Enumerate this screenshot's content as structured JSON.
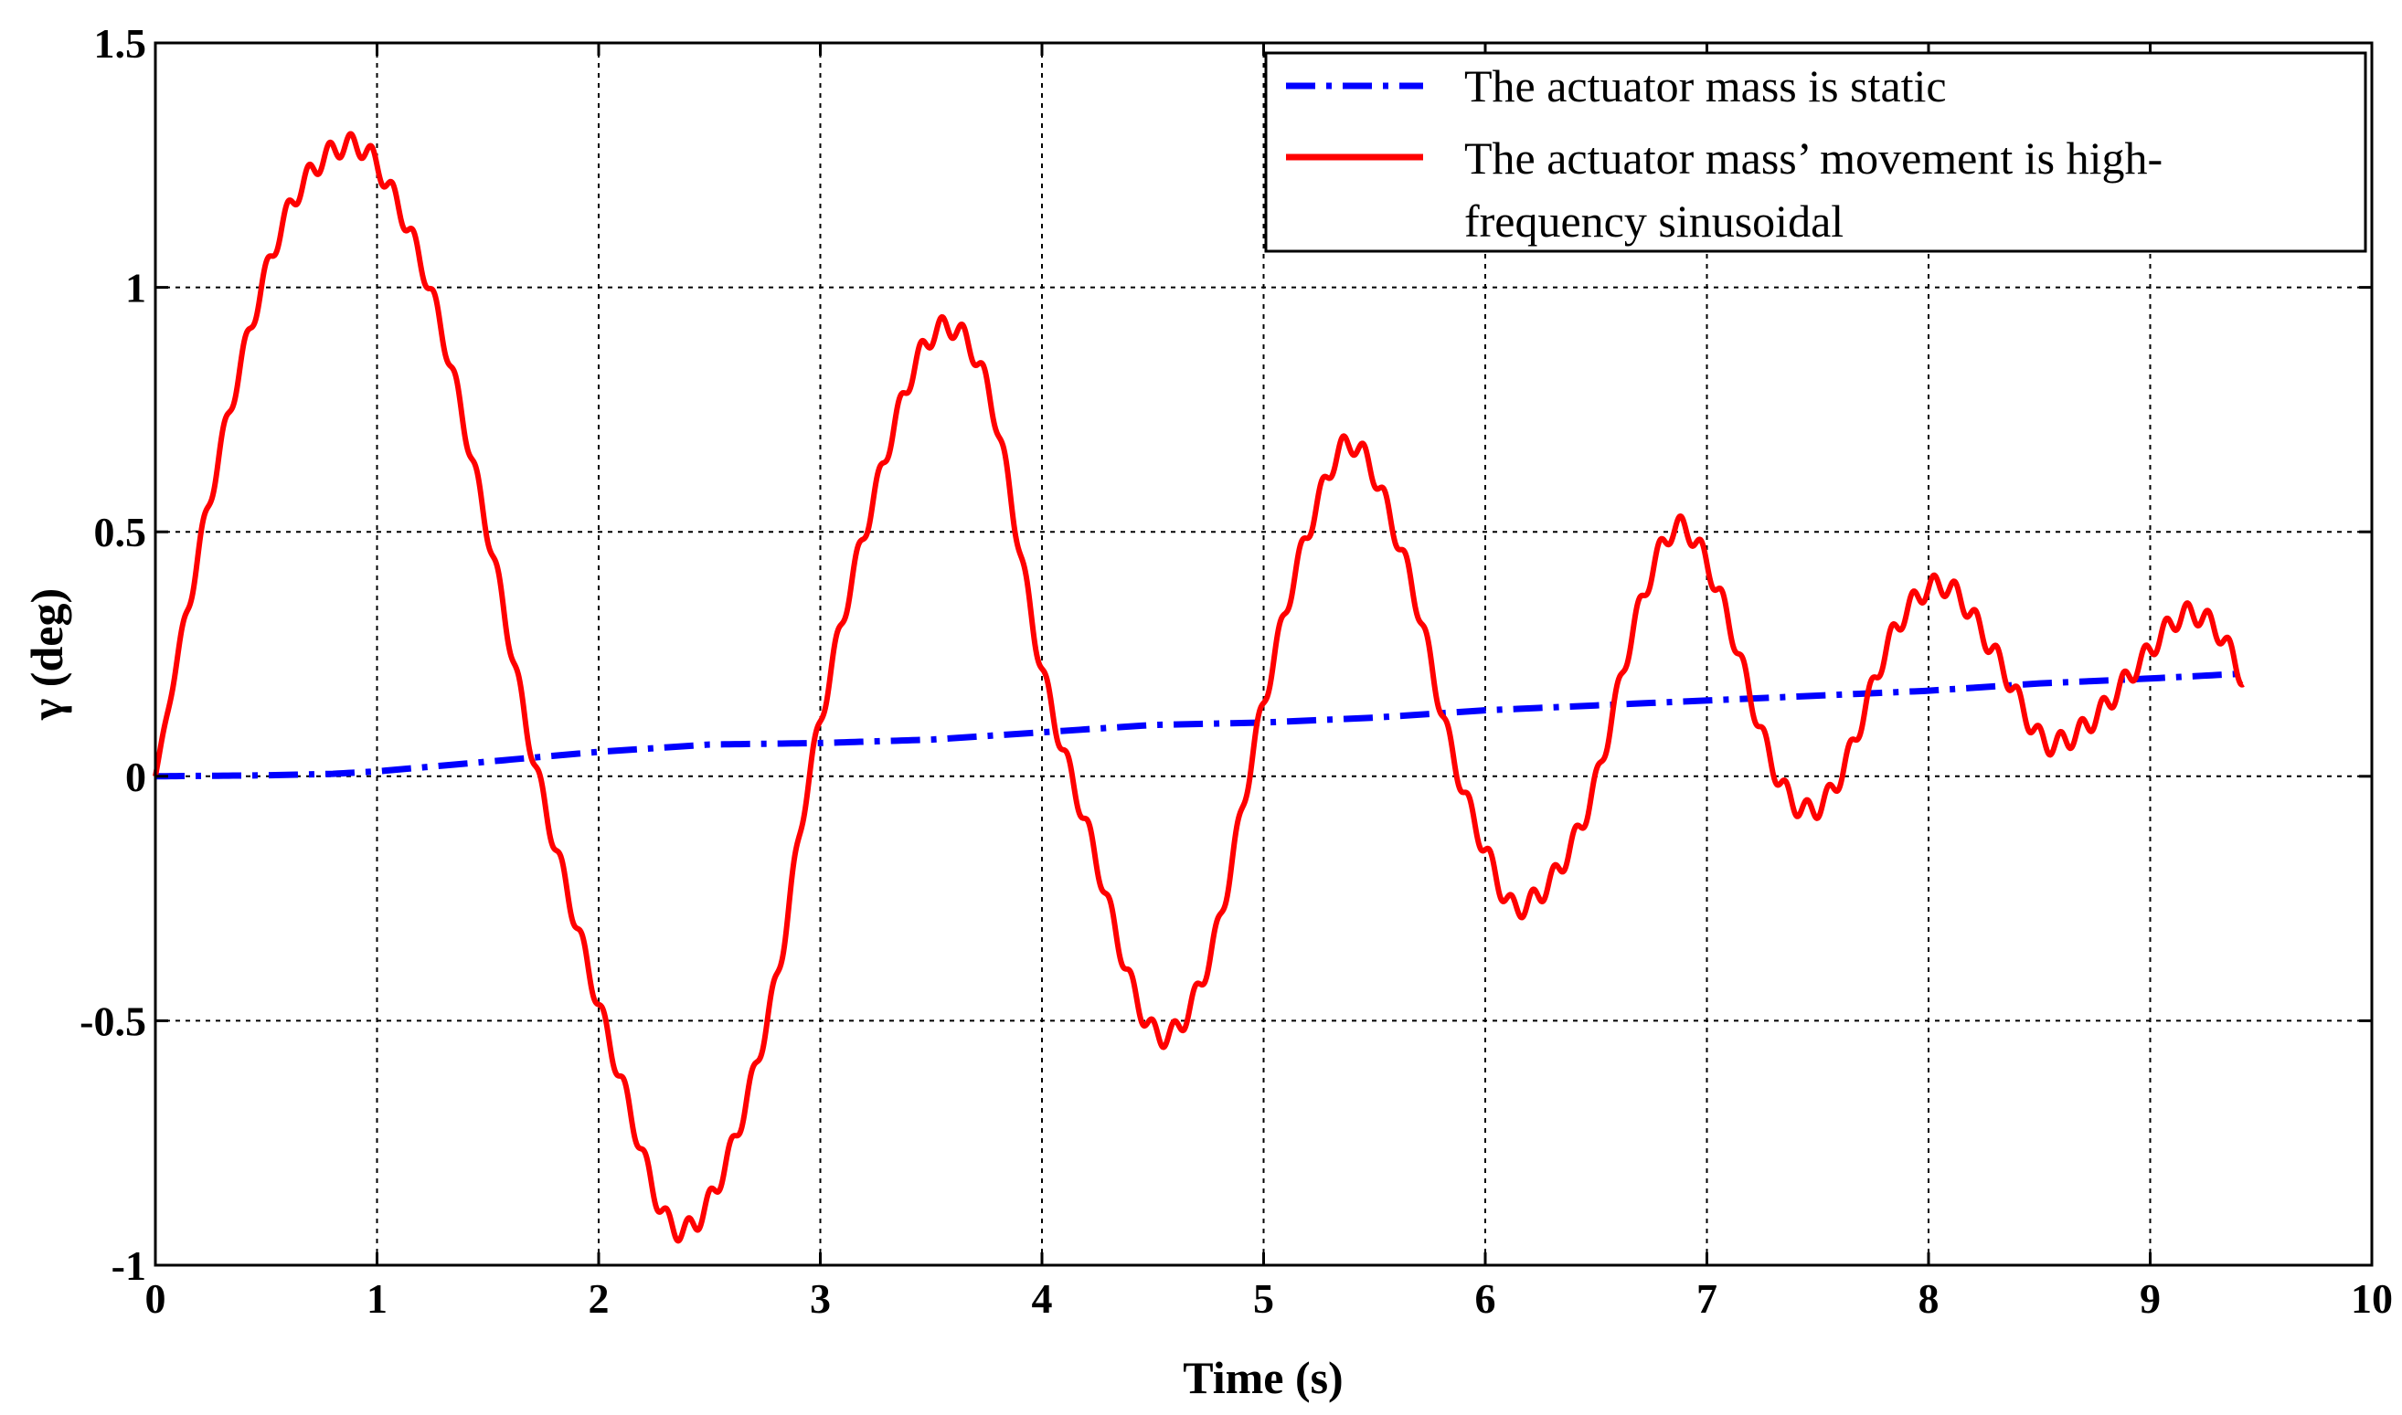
{
  "chart_data": {
    "type": "line",
    "xlabel": "Time (s)",
    "ylabel": "γ (deg)",
    "xlim": [
      0,
      10
    ],
    "ylim": [
      -1,
      1.5
    ],
    "grid": true,
    "x_ticks": [
      0,
      1,
      2,
      3,
      4,
      5,
      6,
      7,
      8,
      9,
      10
    ],
    "x_tick_labels": [
      "0",
      "1",
      "2",
      "3",
      "4",
      "5",
      "6",
      "7",
      "8",
      "9",
      "10"
    ],
    "y_ticks": [
      -1,
      -0.5,
      0,
      0.5,
      1,
      1.5
    ],
    "y_tick_labels": [
      "-1",
      "-0.5",
      "0",
      "0.5",
      "1",
      "1.5"
    ],
    "legend": {
      "placement": "top-right",
      "entries": [
        {
          "label": "The actuator mass is static",
          "color": "#0000ff",
          "style": "dash-dot"
        },
        {
          "label_lines": [
            "The actuator mass’ movement is  high-",
            "frequency sinusoidal"
          ],
          "color": "#ff0000",
          "style": "solid"
        }
      ]
    },
    "series": [
      {
        "name": "The actuator mass is static",
        "color": "#0000ff",
        "style": "dash-dot",
        "x": [
          0,
          0.5,
          0.8,
          1.0,
          1.5,
          2.0,
          2.5,
          3.0,
          3.5,
          4.0,
          4.5,
          5.0,
          5.5,
          6.0,
          6.5,
          7.0,
          7.5,
          8.0,
          8.5,
          9.0,
          9.42
        ],
        "y": [
          0,
          0.002,
          0.005,
          0.01,
          0.03,
          0.05,
          0.065,
          0.068,
          0.075,
          0.09,
          0.105,
          0.11,
          0.12,
          0.135,
          0.145,
          0.155,
          0.165,
          0.175,
          0.19,
          0.2,
          0.21
        ]
      },
      {
        "name": "The actuator mass’ movement is  high-frequency sinusoidal",
        "color": "#ff0000",
        "style": "solid",
        "description_values": "damped oscillation with superimposed high-frequency ripple (~11 Hz, ~0.025 deg)",
        "x": [
          0,
          0.1,
          0.3,
          0.5,
          0.65,
          0.85,
          1.0,
          1.25,
          1.5,
          1.7,
          1.85,
          2.1,
          2.33,
          2.55,
          2.8,
          2.95,
          3.2,
          3.5,
          3.75,
          4.0,
          4.2,
          4.5,
          4.75,
          5.0,
          5.2,
          5.4,
          5.65,
          5.85,
          6.0,
          6.15,
          6.45,
          6.7,
          6.87,
          7.05,
          7.3,
          7.45,
          7.6,
          7.85,
          8.07,
          8.3,
          8.5,
          8.6,
          8.75,
          8.95,
          9.15,
          9.3,
          9.42
        ],
        "y": [
          0,
          0.24,
          0.68,
          1.03,
          1.2,
          1.29,
          1.25,
          0.98,
          0.5,
          0.05,
          -0.22,
          -0.62,
          -0.92,
          -0.82,
          -0.42,
          0.0,
          0.5,
          0.9,
          0.8,
          0.22,
          -0.1,
          -0.52,
          -0.38,
          0.15,
          0.5,
          0.68,
          0.42,
          0.05,
          -0.15,
          -0.27,
          -0.08,
          0.35,
          0.51,
          0.38,
          0.02,
          -0.07,
          0.0,
          0.3,
          0.39,
          0.25,
          0.08,
          0.07,
          0.12,
          0.23,
          0.33,
          0.3,
          0.2
        ]
      }
    ]
  }
}
